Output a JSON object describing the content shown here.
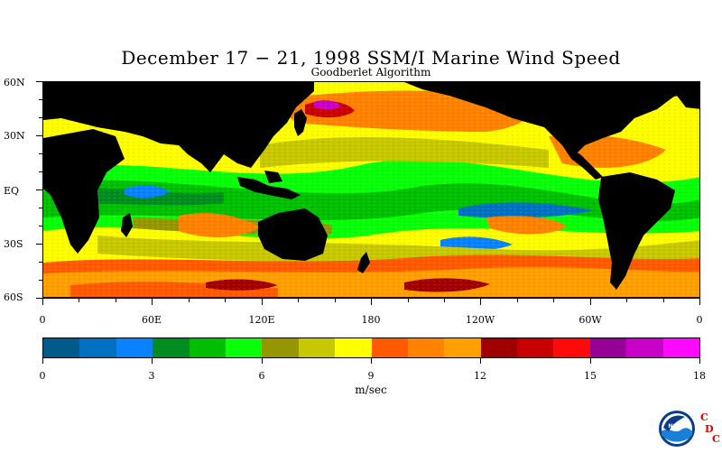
{
  "title": "December 17 − 21, 1998 SSM/I Marine Wind Speed",
  "subtitle": "Goodberlet Algorithm",
  "lat_labels": [
    "60N",
    "30N",
    "EQ",
    "30S",
    "60S"
  ],
  "lon_labels": [
    "0",
    "60E",
    "120E",
    "180",
    "120W",
    "60W",
    "0"
  ],
  "colorbar": {
    "colors": [
      "#005a8c",
      "#0070c0",
      "#0a82ff",
      "#008c1e",
      "#00be00",
      "#0aff0a",
      "#969600",
      "#c8c800",
      "#ffff00",
      "#ff5a00",
      "#ff8200",
      "#ffa000",
      "#a00000",
      "#c80000",
      "#ff0a0a",
      "#960096",
      "#c800c8",
      "#ff0aff"
    ],
    "tick_labels": [
      "0",
      "3",
      "6",
      "9",
      "12",
      "15",
      "18"
    ],
    "units": "m/sec"
  },
  "land_color": "#000000",
  "logos": {
    "noaa_text": "NOAA",
    "cdc_letters": [
      "C",
      "D",
      "C"
    ],
    "cdc_color": "#d40000"
  }
}
